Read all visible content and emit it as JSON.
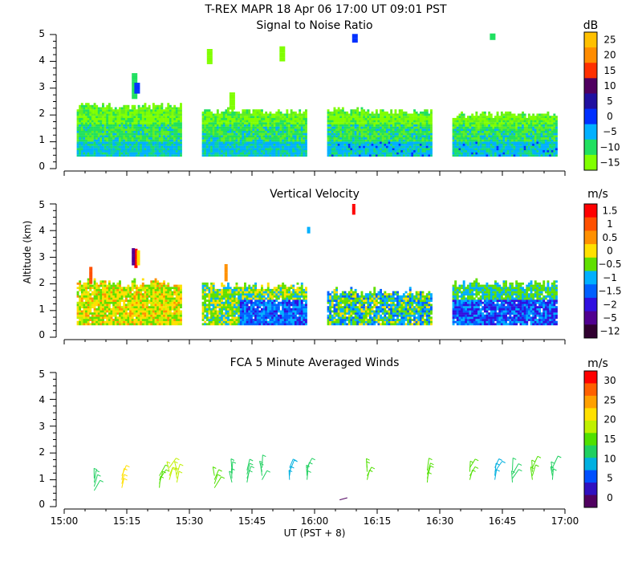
{
  "header": {
    "title": "T-REX   MAPR 18 Apr 06   17:00 UT   09:01   PST"
  },
  "chart_data": [
    {
      "type": "heatmap",
      "title": "Signal to Noise Ratio",
      "ylabel": "",
      "ylim": [
        0,
        5
      ],
      "yticks": [
        "0",
        "1",
        "2",
        "3",
        "4",
        "5"
      ],
      "colorbar": {
        "unit": "dB",
        "labels": [
          "25",
          "20",
          "15",
          "10",
          "5",
          "0",
          "−5",
          "−10",
          "−15"
        ],
        "colors": [
          "#ffc000",
          "#ff8c00",
          "#ff3000",
          "#500060",
          "#2010a0",
          "#0030ff",
          "#00b0ff",
          "#20e060",
          "#80ff00"
        ]
      },
      "segments": [
        {
          "start": "15:05",
          "end": "15:30",
          "top_km": 2.2
        },
        {
          "start": "15:35",
          "end": "15:60",
          "top_km": 2.0
        },
        {
          "start": "16:05",
          "end": "16:30",
          "top_km": 2.1
        },
        {
          "start": "16:35",
          "end": "17:00",
          "top_km": 2.0
        }
      ]
    },
    {
      "type": "heatmap",
      "title": "Vertical Velocity",
      "ylabel": "Altitude (km)",
      "ylim": [
        0,
        5
      ],
      "yticks": [
        "0",
        "1",
        "2",
        "3",
        "4",
        "5"
      ],
      "colorbar": {
        "unit": "m/s",
        "labels": [
          "1.5",
          "1",
          "0.5",
          "0",
          "−0.5",
          "−1",
          "−1.5",
          "−2",
          "−5",
          "−12"
        ],
        "colors": [
          "#ff0000",
          "#ff5000",
          "#ff9000",
          "#ffe000",
          "#60e000",
          "#00b0ff",
          "#0060ff",
          "#3010e0",
          "#500090",
          "#300030"
        ]
      }
    },
    {
      "type": "scatter",
      "title": "FCA 5 Minute Averaged Winds",
      "xlabel": "UT  (PST + 8)",
      "ylim": [
        0,
        5
      ],
      "yticks": [
        "0",
        "1",
        "2",
        "3",
        "4",
        "5"
      ],
      "x_ticks": [
        "15:00",
        "15:15",
        "15:30",
        "15:45",
        "16:00",
        "16:15",
        "16:30",
        "16:45",
        "17:00"
      ],
      "colorbar": {
        "unit": "m/s",
        "labels": [
          "30",
          "25",
          "20",
          "15",
          "10",
          "5",
          "0"
        ],
        "colors": [
          "#ff0000",
          "#ff6000",
          "#ffa000",
          "#ffe000",
          "#c0f000",
          "#50e000",
          "#20d060",
          "#00b0e0",
          "#0050ff",
          "#3010c0",
          "#500060"
        ]
      },
      "barbs": [
        {
          "t": 15.12,
          "alt": 0.8,
          "speed": 12
        },
        {
          "t": 15.23,
          "alt": 0.9,
          "speed": 20
        },
        {
          "t": 15.38,
          "alt": 0.9,
          "speed": 14
        },
        {
          "t": 15.42,
          "alt": 1.2,
          "speed": 17
        },
        {
          "t": 15.45,
          "alt": 1.1,
          "speed": 18
        },
        {
          "t": 15.6,
          "alt": 0.9,
          "speed": 14
        },
        {
          "t": 15.67,
          "alt": 1.1,
          "speed": 13
        },
        {
          "t": 15.73,
          "alt": 1.1,
          "speed": 12
        },
        {
          "t": 15.79,
          "alt": 1.2,
          "speed": 11
        },
        {
          "t": 15.9,
          "alt": 1.2,
          "speed": 9
        },
        {
          "t": 15.97,
          "alt": 1.2,
          "speed": 13
        },
        {
          "t": 16.1,
          "alt": 0.45,
          "speed": 1
        },
        {
          "t": 16.21,
          "alt": 1.2,
          "speed": 14
        },
        {
          "t": 16.45,
          "alt": 1.1,
          "speed": 15
        },
        {
          "t": 16.62,
          "alt": 1.2,
          "speed": 15
        },
        {
          "t": 16.72,
          "alt": 1.2,
          "speed": 10
        },
        {
          "t": 16.79,
          "alt": 1.1,
          "speed": 13
        },
        {
          "t": 16.87,
          "alt": 1.2,
          "speed": 14
        },
        {
          "t": 16.95,
          "alt": 1.2,
          "speed": 12
        }
      ]
    }
  ]
}
